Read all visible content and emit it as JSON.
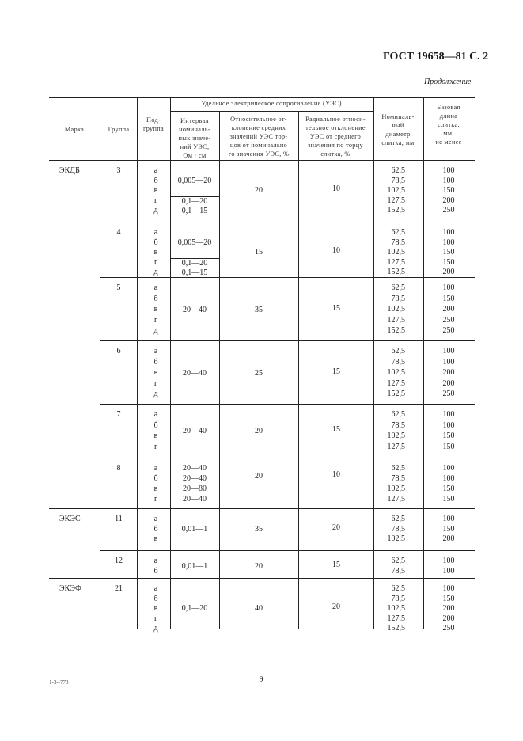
{
  "header": {
    "title": "ГОСТ 19658—81 С. 2",
    "continuation": "Продолжение"
  },
  "table": {
    "columns": {
      "marka": "Марка",
      "group": "Группа",
      "subgroup": "Под-\nгруппа",
      "ues_group": "Удельное электрическое сопротивление (УЭС)",
      "interval": "Интервал\nноминаль-\nных значе-\nний УЭС,\nОм · см",
      "relative": "Относительное от-\nклонение средних\nзначений УЭС тор-\nцов от номинально\nго значения УЭС, %",
      "radial": "Радиальное относи-\nтельное отклонение\nУЭС от среднего\nзначения по торцу\nслитка, %",
      "diameter": "Номиналь-\nный\nдиаметр\nслитка, мм",
      "length": "Базовая\nдлина\nслитка,\nмм,\nне менее"
    },
    "rows": [
      {
        "marka": "ЭКДБ",
        "group": "3",
        "subgroups": [
          "а",
          "б",
          "в",
          "г",
          "д"
        ],
        "interval": [
          [
            "0,005—20"
          ],
          [
            "0,1—20",
            "0,1—15"
          ]
        ],
        "relative": "20",
        "radial": "10",
        "diameters": [
          "62,5",
          "78,5",
          "102,5",
          "127,5",
          "152,5"
        ],
        "lengths": [
          "100",
          "100",
          "150",
          "200",
          "250"
        ]
      },
      {
        "marka": "",
        "group": "4",
        "subgroups": [
          "а",
          "б",
          "в",
          "г",
          "д"
        ],
        "interval": [
          [
            "0,005—20"
          ],
          [
            "0,1—20",
            "0,1—15"
          ]
        ],
        "relative": "15",
        "radial": "10",
        "diameters": [
          "62,5",
          "78,5",
          "102,5",
          "127,5",
          "152,5"
        ],
        "lengths": [
          "100",
          "100",
          "150",
          "150",
          "200"
        ]
      },
      {
        "marka": "",
        "group": "5",
        "subgroups": [
          "а",
          "б",
          "в",
          "г",
          "д"
        ],
        "interval": [
          [
            "20—40"
          ]
        ],
        "relative": "35",
        "radial": "15",
        "diameters": [
          "62,5",
          "78,5",
          "102,5",
          "127,5",
          "152,5"
        ],
        "lengths": [
          "100",
          "150",
          "200",
          "250",
          "250"
        ]
      },
      {
        "marka": "",
        "group": "6",
        "subgroups": [
          "а",
          "б",
          "в",
          "г",
          "д"
        ],
        "interval": [
          [
            "20—40"
          ]
        ],
        "relative": "25",
        "radial": "15",
        "diameters": [
          "62,5",
          "78,5",
          "102,5",
          "127,5",
          "152,5"
        ],
        "lengths": [
          "100",
          "100",
          "200",
          "200",
          "250"
        ]
      },
      {
        "marka": "",
        "group": "7",
        "subgroups": [
          "а",
          "б",
          "в",
          "г"
        ],
        "interval": [
          [
            "20—40"
          ]
        ],
        "relative": "20",
        "radial": "15",
        "diameters": [
          "62,5",
          "78,5",
          "102,5",
          "127,5"
        ],
        "lengths": [
          "100",
          "100",
          "150",
          "150"
        ]
      },
      {
        "marka": "",
        "group": "8",
        "subgroups": [
          "а",
          "б",
          "в",
          "г"
        ],
        "interval": [
          [
            "20—40",
            "20—40",
            "20—80",
            "20—40"
          ]
        ],
        "relative": "20",
        "radial": "10",
        "diameters": [
          "62,5",
          "78,5",
          "102,5",
          "127,5"
        ],
        "lengths": [
          "100",
          "100",
          "150",
          "150"
        ]
      },
      {
        "marka": "ЭКЭС",
        "group": "11",
        "subgroups": [
          "а",
          "б",
          "в"
        ],
        "interval": [
          [
            "0,01—1"
          ]
        ],
        "relative": "35",
        "radial": "20",
        "diameters": [
          "62,5",
          "78,5",
          "102,5"
        ],
        "lengths": [
          "100",
          "150",
          "200"
        ]
      },
      {
        "marka": "",
        "group": "12",
        "subgroups": [
          "а",
          "б"
        ],
        "interval": [
          [
            "0,01—1"
          ]
        ],
        "relative": "20",
        "radial": "15",
        "diameters": [
          "62,5",
          "78,5"
        ],
        "lengths": [
          "100",
          "100"
        ]
      },
      {
        "marka": "ЭКЭФ",
        "group": "21",
        "subgroups": [
          "а",
          "б",
          "в",
          "г",
          "д"
        ],
        "interval": [
          [
            "0,1—20"
          ]
        ],
        "relative": "40",
        "radial": "20",
        "diameters": [
          "62,5",
          "78,5",
          "102,5",
          "127,5",
          "152,5"
        ],
        "lengths": [
          "100",
          "150",
          "200",
          "200",
          "250"
        ]
      }
    ]
  },
  "footer": {
    "code": "1-3--773",
    "page_number": "9"
  }
}
